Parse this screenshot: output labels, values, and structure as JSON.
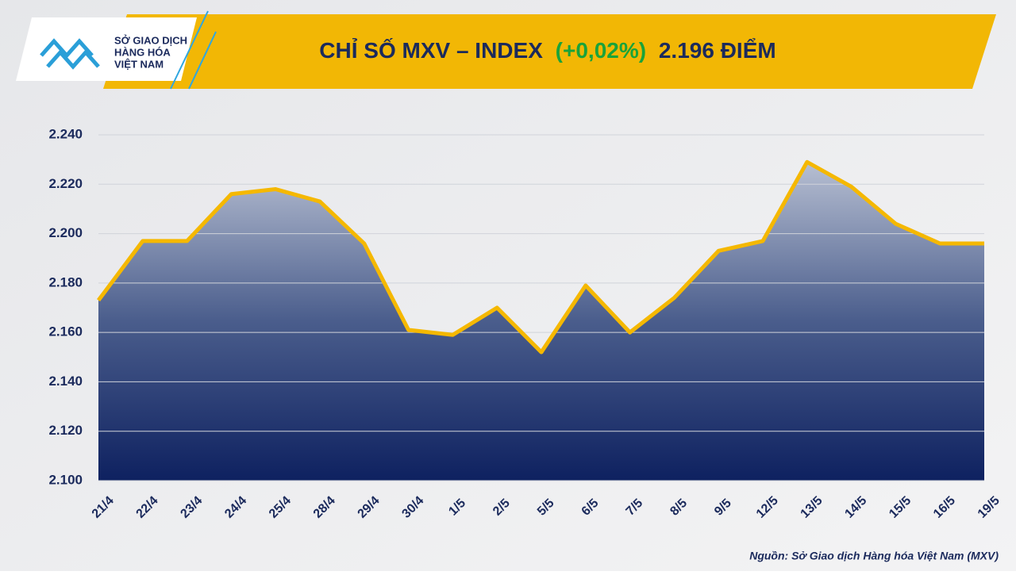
{
  "logo": {
    "lines": [
      "SỞ GIAO DỊCH",
      "HÀNG HÓA",
      "VIỆT NAM"
    ]
  },
  "chart_data": {
    "type": "area",
    "title": "CHỈ SỐ MXV – INDEX",
    "title_change": "(+0,02%)",
    "title_value": "2.196 ĐIỂM",
    "categories": [
      "21/4",
      "22/4",
      "23/4",
      "24/4",
      "25/4",
      "28/4",
      "29/4",
      "30/4",
      "1/5",
      "2/5",
      "5/5",
      "6/5",
      "7/5",
      "8/5",
      "9/5",
      "12/5",
      "13/5",
      "14/5",
      "15/5",
      "16/5",
      "19/5"
    ],
    "values": [
      2173,
      2197,
      2197,
      2216,
      2218,
      2213,
      2196,
      2161,
      2159,
      2170,
      2152,
      2179,
      2160,
      2174,
      2193,
      2197,
      2229,
      2219,
      2204,
      2196,
      2196
    ],
    "color": "#f5b800",
    "ylim": [
      2100,
      2240
    ],
    "yticks": [
      {
        "value": 2100,
        "label": "2.100"
      },
      {
        "value": 2120,
        "label": "2.120"
      },
      {
        "value": 2140,
        "label": "2.140"
      },
      {
        "value": 2160,
        "label": "2.160"
      },
      {
        "value": 2180,
        "label": "2.180"
      },
      {
        "value": 2200,
        "label": "2.200"
      },
      {
        "value": 2220,
        "label": "2.220"
      },
      {
        "value": 2240,
        "label": "2.240"
      }
    ],
    "grid": true
  },
  "source": "Nguồn: Sở Giao dịch Hàng hóa Việt Nam (MXV)"
}
